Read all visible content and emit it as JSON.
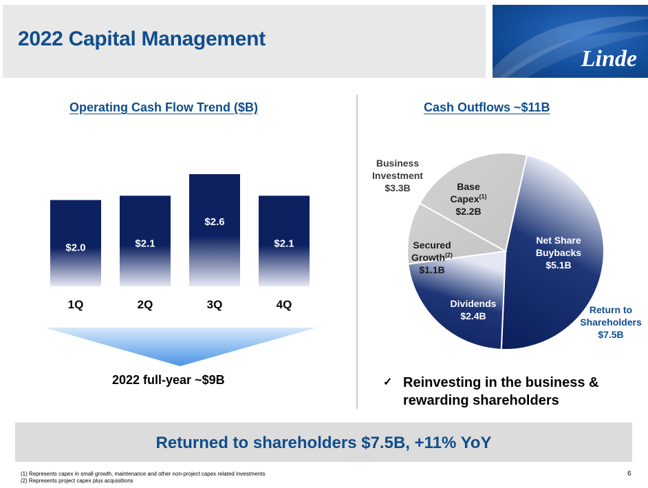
{
  "header": {
    "title": "2022 Capital Management",
    "logo_text": "Linde"
  },
  "left": {
    "title": "Operating Cash Flow Trend ($B)",
    "full_year_label": "2022 full-year ~$9B"
  },
  "right": {
    "title": "Cash Outflows ~$11B",
    "checkmark": "✓",
    "checkmark_text": "Reinvesting in the business & rewarding shareholders"
  },
  "pie_labels": {
    "business_investment": [
      "Business",
      "Investment",
      "$3.3B"
    ],
    "base_capex": [
      "Base",
      "Capex",
      "(1)",
      "$2.2B"
    ],
    "secured_growth": [
      "Secured",
      "Growth",
      "(2)",
      "$1.1B"
    ],
    "net_share_buybacks": [
      "Net Share",
      "Buybacks",
      "$5.1B"
    ],
    "dividends": [
      "Dividends",
      "$2.4B"
    ],
    "return_to_shareholders": [
      "Return to",
      "Shareholders",
      "$7.5B"
    ]
  },
  "banner": {
    "text": "Returned to shareholders $7.5B, +11% YoY"
  },
  "footnotes": [
    "(1) Represents capex in small growth, maintenance and other non-project capex related investments",
    "(2) Represents project capex plus acquisitions"
  ],
  "page_number": "6",
  "colors": {
    "title_blue": "#0f4d8c",
    "bar_navy": "#0d2161",
    "pie_gray": "#cccccc",
    "pie_navy": "#0d2161"
  },
  "chart_data": [
    {
      "type": "bar",
      "title": "Operating Cash Flow Trend ($B)",
      "categories": [
        "1Q",
        "2Q",
        "3Q",
        "4Q"
      ],
      "values": [
        2.0,
        2.1,
        2.6,
        2.1
      ],
      "data_labels": [
        "$2.0",
        "$2.1",
        "$2.6",
        "$2.1"
      ],
      "ylim": [
        0,
        2.6
      ]
    },
    {
      "type": "pie",
      "title": "Cash Outflows ~$11B",
      "categories": [
        "Net Share Buybacks",
        "Dividends",
        "Secured Growth",
        "Base Capex"
      ],
      "values": [
        5.1,
        2.4,
        1.1,
        2.2
      ],
      "colors": [
        "#0d2161",
        "#0d2161",
        "#cccccc",
        "#cccccc"
      ]
    }
  ]
}
